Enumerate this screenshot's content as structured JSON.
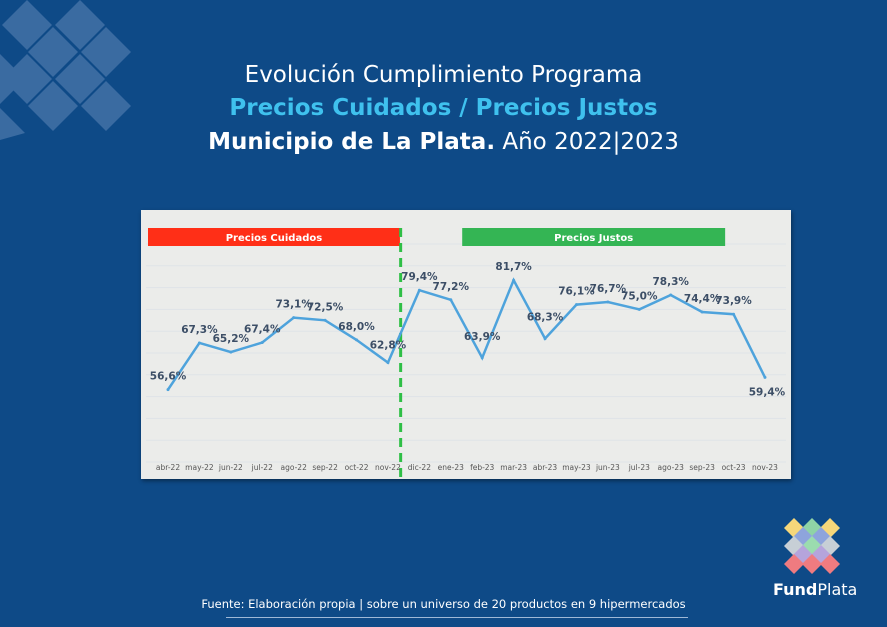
{
  "header": {
    "line1": "Evolución Cumplimiento Programa",
    "line2": "Precios Cuidados / Precios Justos",
    "line3_bold": "Municipio de La Plata.",
    "line3_rest": " Año 2022|2023"
  },
  "chart_data": {
    "type": "line",
    "title": "",
    "xlabel": "",
    "ylabel": "",
    "ylim": [
      40,
      90
    ],
    "grid": true,
    "categories": [
      "abr-22",
      "may-22",
      "jun-22",
      "jul-22",
      "ago-22",
      "sep-22",
      "oct-22",
      "nov-22",
      "dic-22",
      "ene-23",
      "feb-23",
      "mar-23",
      "abr-23",
      "may-23",
      "jun-23",
      "jul-23",
      "ago-23",
      "sep-23",
      "oct-23",
      "nov-23"
    ],
    "values": [
      56.6,
      67.3,
      65.2,
      67.4,
      73.1,
      72.5,
      68.0,
      62.8,
      79.4,
      77.2,
      63.9,
      81.7,
      68.3,
      76.1,
      76.7,
      75.0,
      78.3,
      74.4,
      73.9,
      59.4
    ],
    "data_labels": [
      "56,6%",
      "67,3%",
      "65,2%",
      "67,4%",
      "73,1%",
      "72,5%",
      "68,0%",
      "62,8%",
      "79,4%",
      "77,2%",
      "63,9%",
      "81,7%",
      "68,3%",
      "76,1%",
      "76,7%",
      "75,0%",
      "78,3%",
      "74,4%",
      "73,9%",
      "59,4%"
    ],
    "line_color": "#4ea3dc",
    "annotations": [
      {
        "text": "Precios Cuidados",
        "from": "abr-22",
        "to": "nov-22",
        "color": "#ff2f17"
      },
      {
        "text": "Precios Justos",
        "from": "feb-23",
        "to": "sep-23",
        "color": "#34b554"
      }
    ],
    "divider": {
      "between": [
        "nov-22",
        "dic-22"
      ],
      "color": "#2fbf46",
      "style": "dashed"
    }
  },
  "footer": {
    "source": "Fuente: Elaboración propia | sobre un universo de 20 productos en 9 hipermercados"
  },
  "logo": {
    "bold": "Fund",
    "rest": "Plata"
  }
}
